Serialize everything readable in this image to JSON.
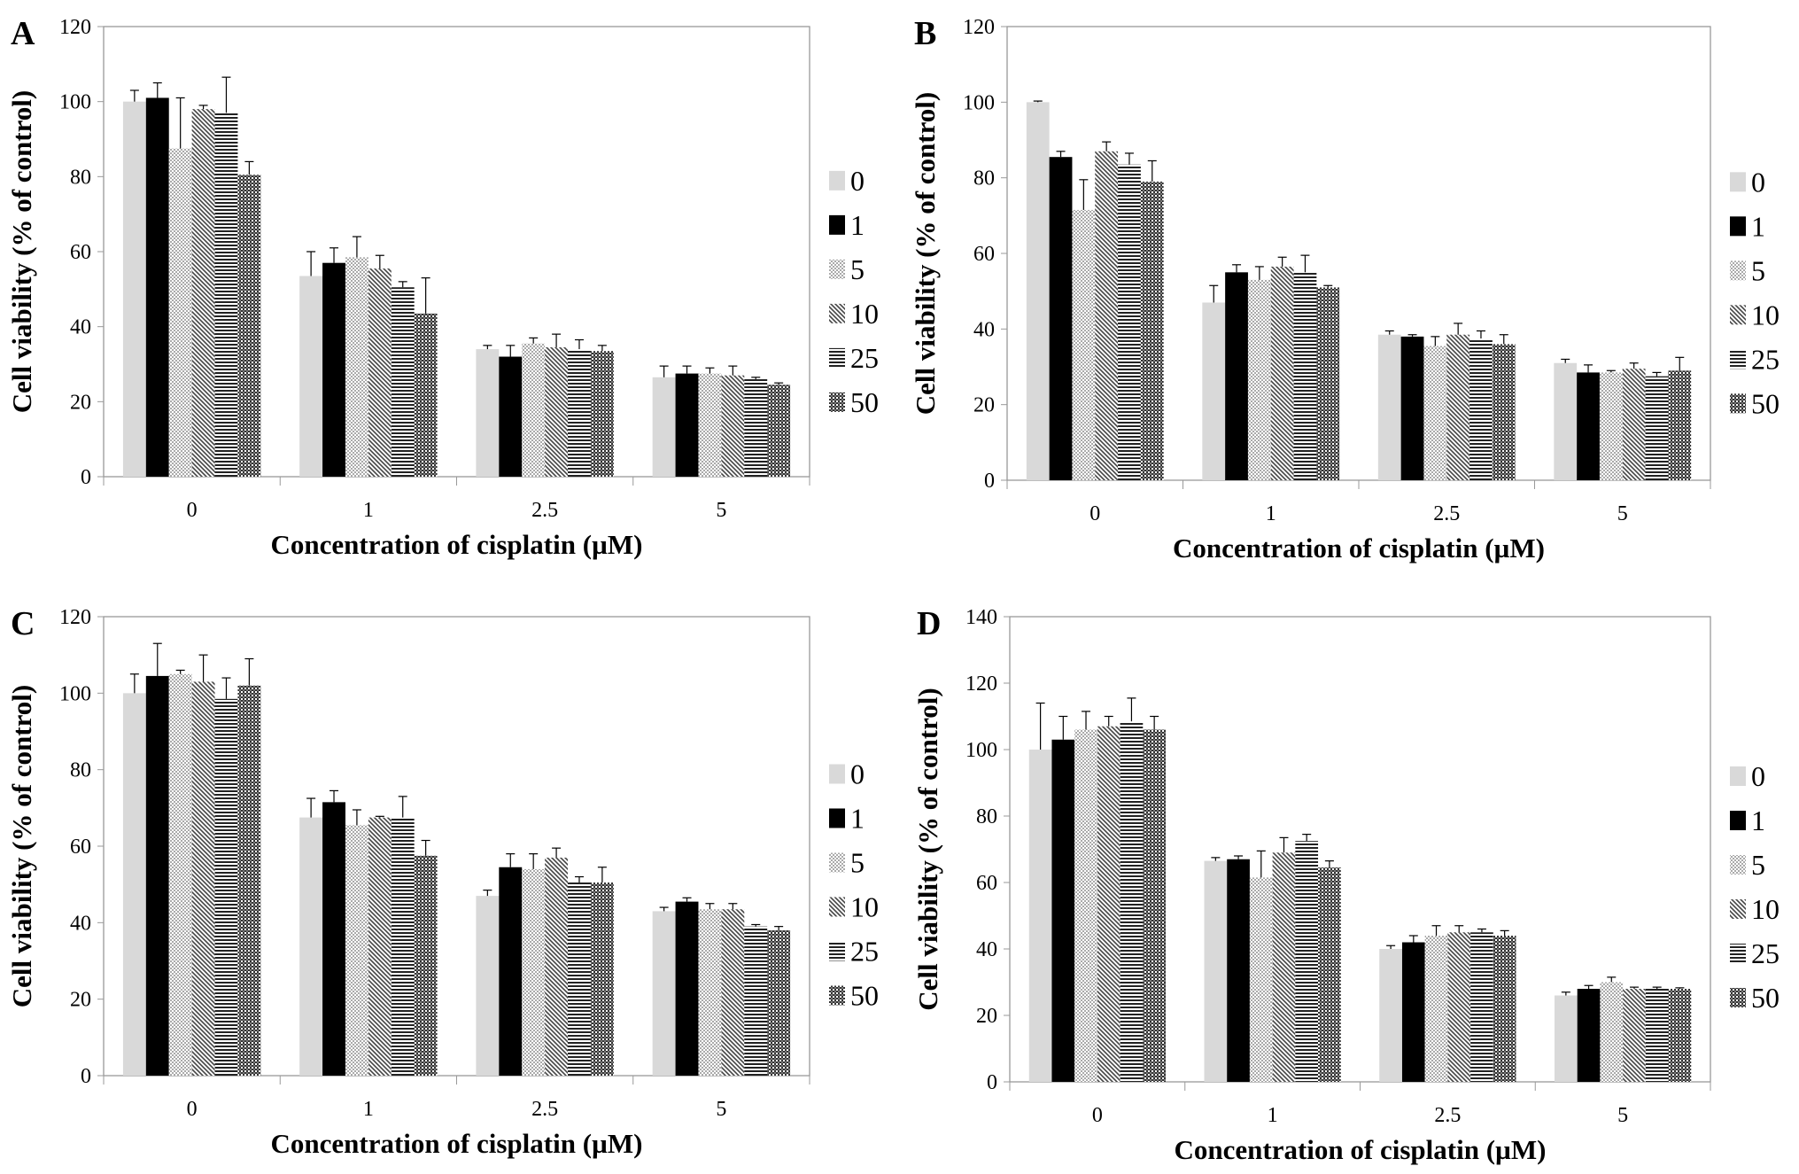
{
  "series_names": [
    "0",
    "1",
    "5",
    "10",
    "25",
    "50"
  ],
  "colors": {
    "s0": "#d9d9d9",
    "s1": "#000000",
    "axis": "#999999"
  },
  "chart_data": [
    {
      "panel": "A",
      "type": "bar",
      "title": "",
      "xlabel": "Concentration of cisplatin (µM)",
      "ylabel": "Cell viability (% of control)",
      "categories": [
        "0",
        "1",
        "2.5",
        "5"
      ],
      "ylim": [
        0,
        120
      ],
      "yticks": [
        0,
        20,
        40,
        60,
        80,
        100,
        120
      ],
      "legend": "right",
      "series": [
        {
          "name": "0",
          "values": [
            100,
            53.5,
            34,
            26.5
          ],
          "errors": [
            3,
            6.5,
            1,
            3
          ]
        },
        {
          "name": "1",
          "values": [
            101,
            57,
            32,
            27.5
          ],
          "errors": [
            4,
            4,
            3,
            2
          ]
        },
        {
          "name": "5",
          "values": [
            87.5,
            58.5,
            35.5,
            27.5
          ],
          "errors": [
            13.5,
            5.5,
            1.5,
            1.5
          ]
        },
        {
          "name": "10",
          "values": [
            98,
            55.5,
            34.5,
            27
          ],
          "errors": [
            1,
            3.5,
            3.5,
            2.5
          ]
        },
        {
          "name": "25",
          "values": [
            97,
            50.5,
            34,
            26
          ],
          "errors": [
            9.5,
            1.5,
            2.5,
            0.5
          ]
        },
        {
          "name": "50",
          "values": [
            80.5,
            43.5,
            33.5,
            24.5
          ],
          "errors": [
            3.5,
            9.5,
            1.5,
            0.5
          ]
        }
      ]
    },
    {
      "panel": "B",
      "type": "bar",
      "title": "",
      "xlabel": "Concentration of cisplatin (µM)",
      "ylabel": "Cell viability (% of control)",
      "categories": [
        "0",
        "1",
        "2.5",
        "5"
      ],
      "ylim": [
        0,
        120
      ],
      "yticks": [
        0,
        20,
        40,
        60,
        80,
        100,
        120
      ],
      "legend": "right",
      "series": [
        {
          "name": "0",
          "values": [
            100,
            47,
            38.5,
            31
          ],
          "errors": [
            0.3,
            4.5,
            1,
            1
          ]
        },
        {
          "name": "1",
          "values": [
            85.5,
            55,
            38,
            28.5
          ],
          "errors": [
            1.5,
            2,
            0.5,
            2
          ]
        },
        {
          "name": "5",
          "values": [
            71.5,
            53,
            35.5,
            28.5
          ],
          "errors": [
            8,
            3.5,
            2.5,
            0.5
          ]
        },
        {
          "name": "10",
          "values": [
            87,
            56.5,
            38.5,
            29.5
          ],
          "errors": [
            2.5,
            2.5,
            3,
            1.5
          ]
        },
        {
          "name": "25",
          "values": [
            83.5,
            55,
            37.5,
            27.5
          ],
          "errors": [
            3,
            4.5,
            2,
            1
          ]
        },
        {
          "name": "50",
          "values": [
            79,
            51,
            36,
            29
          ],
          "errors": [
            5.5,
            0.5,
            2.5,
            3.5
          ]
        }
      ]
    },
    {
      "panel": "C",
      "type": "bar",
      "title": "",
      "xlabel": "Concentration of cisplatin (µM)",
      "ylabel": "Cell viability (% of control)",
      "categories": [
        "0",
        "1",
        "2.5",
        "5"
      ],
      "ylim": [
        0,
        120
      ],
      "yticks": [
        0,
        20,
        40,
        60,
        80,
        100,
        120
      ],
      "legend": "right",
      "series": [
        {
          "name": "0",
          "values": [
            100,
            67.5,
            47,
            43
          ],
          "errors": [
            5,
            5,
            1.5,
            1
          ]
        },
        {
          "name": "1",
          "values": [
            104.5,
            71.5,
            54.5,
            45.5
          ],
          "errors": [
            8.5,
            3,
            3.5,
            1
          ]
        },
        {
          "name": "5",
          "values": [
            105,
            65.5,
            54,
            43.5
          ],
          "errors": [
            1,
            4,
            4,
            1.5
          ]
        },
        {
          "name": "10",
          "values": [
            103,
            67.5,
            57,
            43.5
          ],
          "errors": [
            7,
            0.3,
            2.5,
            1.5
          ]
        },
        {
          "name": "25",
          "values": [
            98.5,
            67.5,
            50.5,
            39
          ],
          "errors": [
            5.5,
            5.5,
            1.5,
            0.5
          ]
        },
        {
          "name": "50",
          "values": [
            102,
            57.5,
            50.5,
            38
          ],
          "errors": [
            7,
            4,
            4,
            1
          ]
        }
      ]
    },
    {
      "panel": "D",
      "type": "bar",
      "title": "",
      "xlabel": "Concentration of cisplatin (µM)",
      "ylabel": "Cell viability (% of control)",
      "categories": [
        "0",
        "1",
        "2.5",
        "5"
      ],
      "ylim": [
        0,
        140
      ],
      "yticks": [
        0,
        20,
        40,
        60,
        80,
        100,
        120,
        140
      ],
      "legend": "right",
      "series": [
        {
          "name": "0",
          "values": [
            100,
            66.5,
            40,
            26
          ],
          "errors": [
            14,
            1,
            1,
            1
          ]
        },
        {
          "name": "1",
          "values": [
            103,
            67,
            42,
            28
          ],
          "errors": [
            7,
            1,
            2,
            1
          ]
        },
        {
          "name": "5",
          "values": [
            106,
            61.5,
            44,
            30
          ],
          "errors": [
            5.5,
            8,
            3,
            1.5
          ]
        },
        {
          "name": "10",
          "values": [
            107,
            69,
            45,
            28
          ],
          "errors": [
            3,
            4.5,
            2,
            0.5
          ]
        },
        {
          "name": "25",
          "values": [
            108.5,
            72.5,
            45,
            28
          ],
          "errors": [
            7,
            2,
            1,
            0.5
          ]
        },
        {
          "name": "50",
          "values": [
            106,
            64.5,
            44,
            28
          ],
          "errors": [
            4,
            2,
            1.5,
            0.3
          ]
        }
      ]
    }
  ]
}
